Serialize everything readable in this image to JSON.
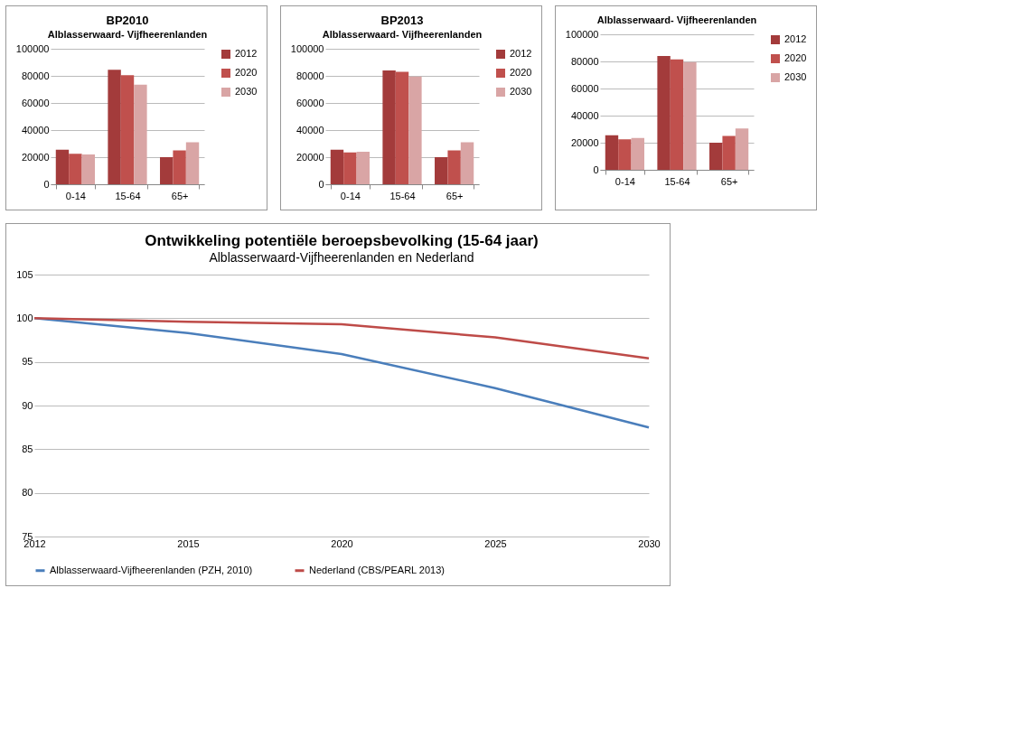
{
  "chart_data": [
    {
      "type": "bar",
      "title": "BP2010",
      "subtitle": "Alblasserwaard- Vijfheerenlanden",
      "categories": [
        "0-14",
        "15-64",
        "65+"
      ],
      "series": [
        {
          "name": "2012",
          "color": "#a33b3b",
          "values": [
            25500,
            84500,
            20000
          ]
        },
        {
          "name": "2020",
          "color": "#c0504d",
          "values": [
            22500,
            80500,
            25000
          ]
        },
        {
          "name": "2030",
          "color": "#d9a5a5",
          "values": [
            22000,
            73500,
            31000
          ]
        }
      ],
      "ylim": [
        0,
        100000
      ],
      "yticks": [
        0,
        20000,
        40000,
        60000,
        80000,
        100000
      ],
      "grid": "y",
      "legend": "right"
    },
    {
      "type": "bar",
      "title": "BP2013",
      "subtitle": "Alblasserwaard- Vijfheerenlanden",
      "categories": [
        "0-14",
        "15-64",
        "65+"
      ],
      "series": [
        {
          "name": "2012",
          "color": "#a33b3b",
          "values": [
            25500,
            84000,
            20000
          ]
        },
        {
          "name": "2020",
          "color": "#c0504d",
          "values": [
            23500,
            83000,
            25000
          ]
        },
        {
          "name": "2030",
          "color": "#d9a5a5",
          "values": [
            24000,
            79500,
            31000
          ]
        }
      ],
      "ylim": [
        0,
        100000
      ],
      "yticks": [
        0,
        20000,
        40000,
        60000,
        80000,
        100000
      ],
      "grid": "y",
      "legend": "right"
    },
    {
      "type": "bar",
      "subtitle": "Alblasserwaard- Vijfheerenlanden",
      "categories": [
        "0-14",
        "15-64",
        "65+"
      ],
      "series": [
        {
          "name": "2012",
          "color": "#a33b3b",
          "values": [
            25500,
            84000,
            20000
          ]
        },
        {
          "name": "2020",
          "color": "#c0504d",
          "values": [
            22500,
            81500,
            25000
          ]
        },
        {
          "name": "2030",
          "color": "#d9a5a5",
          "values": [
            23500,
            79500,
            30500
          ]
        }
      ],
      "ylim": [
        0,
        100000
      ],
      "yticks": [
        0,
        20000,
        40000,
        60000,
        80000,
        100000
      ],
      "grid": "y",
      "legend": "right"
    },
    {
      "type": "line",
      "title": "Ontwikkeling potentiële beroepsbevolking (15-64 jaar)",
      "subtitle": "Alblasserwaard-Vijfheerenlanden en Nederland",
      "categories": [
        "2012",
        "2015",
        "2020",
        "2025",
        "2030"
      ],
      "series": [
        {
          "name": "Alblasserwaard-Vijfheerenlanden (PZH, 2010)",
          "color": "#4a7ebb",
          "values": [
            100,
            98.3,
            95.9,
            92,
            87.5
          ]
        },
        {
          "name": "Nederland (CBS/PEARL 2013)",
          "color": "#be4b48",
          "values": [
            100,
            99.6,
            99.3,
            97.8,
            95.4
          ]
        }
      ],
      "ylim": [
        75,
        105
      ],
      "yticks": [
        75,
        80,
        85,
        90,
        95,
        100,
        105
      ],
      "grid": "y",
      "legend": "bottom",
      "marker": "none",
      "line_style": "solid"
    }
  ]
}
